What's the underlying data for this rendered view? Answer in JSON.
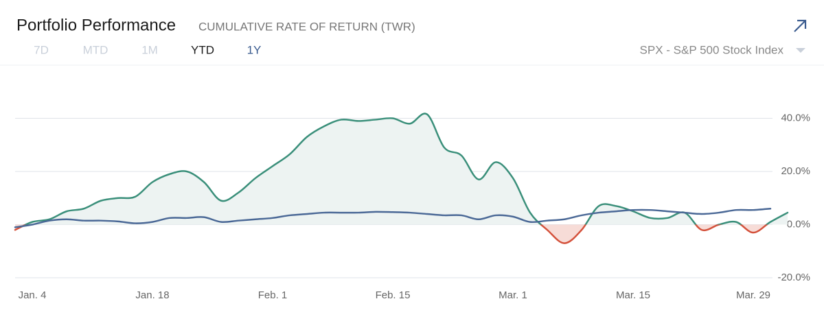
{
  "header": {
    "title": "Portfolio Performance",
    "subtitle": "CUMULATIVE RATE OF RETURN (TWR)",
    "ranges": [
      "7D",
      "MTD",
      "1M",
      "YTD",
      "1Y"
    ]
  },
  "chart_data": {
    "type": "line",
    "categories": [
      null,
      "Jan. 4",
      null,
      null,
      null,
      null,
      null,
      null,
      "Jan. 18",
      null,
      null,
      null,
      null,
      null,
      null,
      "Feb. 1",
      null,
      null,
      null,
      null,
      null,
      null,
      "Feb. 15",
      null,
      null,
      null,
      null,
      null,
      null,
      "Mar. 1",
      null,
      null,
      null,
      null,
      null,
      null,
      "Mar. 15",
      null,
      null,
      null,
      null,
      null,
      null,
      "Mar. 29",
      null,
      null
    ],
    "series": [
      {
        "color": "#3a8f7a",
        "negative_color": "#d4513b",
        "fill_color": "#edf3f2",
        "negative_fill_color": "#f7dcd7",
        "values": [
          -2,
          1,
          2,
          5,
          6,
          9,
          10,
          10.5,
          16,
          19,
          20,
          16,
          9,
          12,
          17.5,
          22,
          26.5,
          33,
          37,
          39.5,
          39,
          39.5,
          40,
          38,
          41.5,
          29,
          26,
          17,
          23.5,
          17.5,
          4.5,
          -2,
          -7,
          -2,
          7,
          7,
          5,
          2.5,
          2.5,
          4.5,
          -2,
          0,
          1,
          -3,
          1,
          4.5
        ]
      },
      {
        "name": "SPX - S&P 500 Stock Index",
        "color": "#4a6896",
        "values": [
          -1,
          0,
          1.5,
          2,
          1.5,
          1.5,
          1.2,
          0.5,
          1,
          2.5,
          2.5,
          2.8,
          1,
          1.5,
          2,
          2.5,
          3.5,
          4,
          4.5,
          4.5,
          4.5,
          4.8,
          4.7,
          4.5,
          4,
          3.5,
          3.5,
          2,
          3.5,
          3,
          1,
          1.5,
          2,
          3.5,
          4.5,
          5,
          5.5,
          5.5,
          5,
          4.5,
          4,
          4.5,
          5.5,
          5.5,
          6,
          null
        ]
      }
    ],
    "ylim": [
      -20,
      60
    ],
    "yticks": [
      {
        "value": -20,
        "label": "-20.0%"
      },
      {
        "value": 0,
        "label": "0.0%"
      },
      {
        "value": 20,
        "label": "20.0%"
      },
      {
        "value": 40,
        "label": "40.0%"
      }
    ],
    "grid": true
  }
}
